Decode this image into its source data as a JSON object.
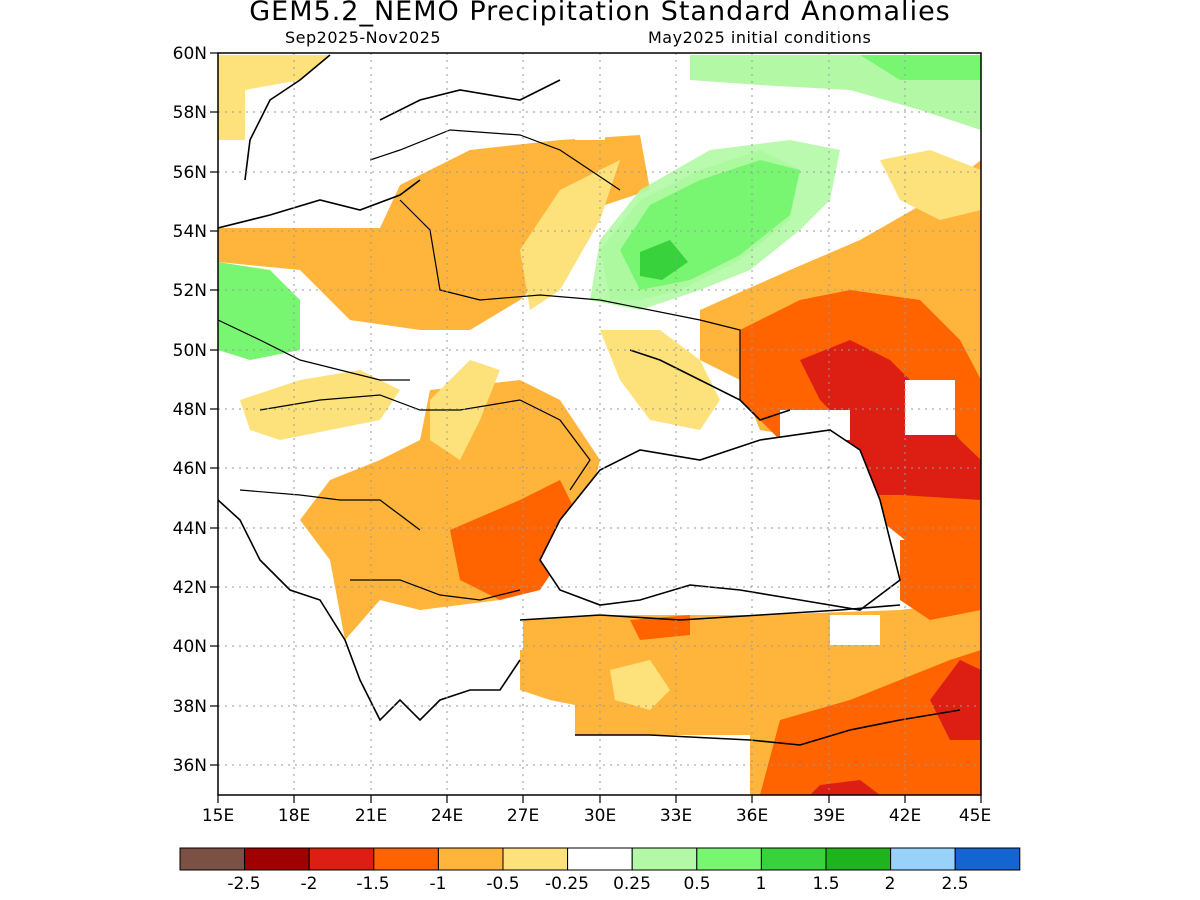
{
  "title": "GEM5.2_NEMO Precipitation Standard Anomalies",
  "subtitle_left": "Sep2025-Nov2025",
  "subtitle_right": "May2025 initial conditions",
  "lat_labels": [
    "60N",
    "58N",
    "56N",
    "54N",
    "52N",
    "50N",
    "48N",
    "46N",
    "44N",
    "42N",
    "40N",
    "38N",
    "36N"
  ],
  "lon_labels": [
    "15E",
    "18E",
    "21E",
    "24E",
    "27E",
    "30E",
    "33E",
    "36E",
    "39E",
    "42E",
    "45E"
  ],
  "colorbar": {
    "colors": [
      "#7a5144",
      "#a00000",
      "#dc1e13",
      "#ff6400",
      "#ffb43c",
      "#fde27c",
      "#ffffff",
      "#b3f9a5",
      "#78f672",
      "#37d23c",
      "#1eb41e",
      "#96d2fa",
      "#1464d2"
    ],
    "labels": [
      "-2.5",
      "-2",
      "-1.5",
      "-1",
      "-0.5",
      "-0.25",
      "0.25",
      "0.5",
      "1",
      "1.5",
      "2",
      "2.5"
    ]
  }
}
